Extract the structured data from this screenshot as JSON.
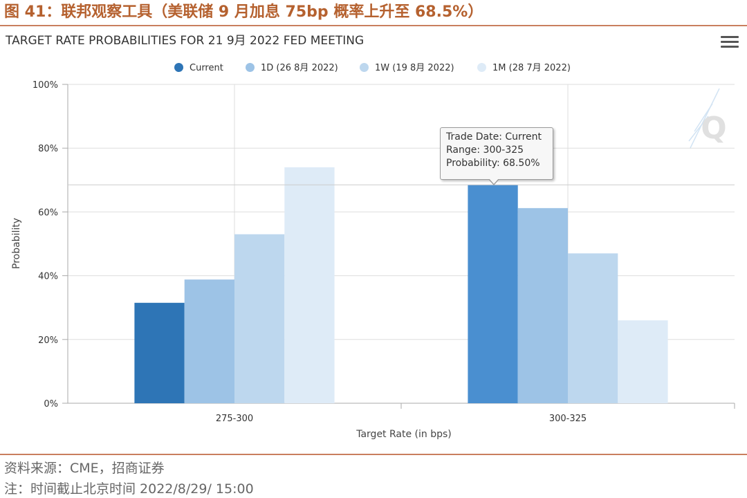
{
  "figure": {
    "title": "图 41：联邦观察工具（美联储 9 月加息 75bp 概率上升至 68.5%）",
    "source": "资料来源：CME，招商证券",
    "note": "注：时间截止北京时间 2022/8/29/ 15:00"
  },
  "menu": {
    "icon": "hamburger-menu-icon"
  },
  "watermark": {
    "icon": "quikstrike-q-logo",
    "letter": "Q"
  },
  "colors": {
    "rule": "#c97e5e",
    "title": "#b5612f",
    "current": "#2e75b6",
    "current_highlight": "#4a8fd0",
    "d1": "#9dc3e6",
    "w1": "#bdd7ee",
    "m1": "#deebf7",
    "grid": "#dddddd",
    "axis": "#aaaaaa"
  },
  "tooltip": {
    "line1": "Trade Date: Current",
    "line2": "Range: 300-325",
    "line3": "Probability: 68.50%"
  },
  "chart_data": {
    "type": "bar",
    "title": "TARGET RATE PROBABILITIES FOR 21 9月 2022 FED MEETING",
    "xlabel": "Target Rate (in bps)",
    "ylabel": "Probability",
    "categories": [
      "275-300",
      "300-325"
    ],
    "ylim": [
      0,
      100
    ],
    "yticks": [
      "0%",
      "20%",
      "40%",
      "60%",
      "80%",
      "100%"
    ],
    "yunit": "%",
    "grid": true,
    "legend_position": "top",
    "series": [
      {
        "name": "Current",
        "color": "#2e75b6",
        "values": [
          31.5,
          68.5
        ]
      },
      {
        "name": "1D (26 8月 2022)",
        "color": "#9dc3e6",
        "values": [
          38.8,
          61.2
        ]
      },
      {
        "name": "1W (19 8月 2022)",
        "color": "#bdd7ee",
        "values": [
          53.0,
          47.0
        ]
      },
      {
        "name": "1M (28 7月 2022)",
        "color": "#deebf7",
        "values": [
          74.0,
          26.0
        ]
      }
    ],
    "highlight": {
      "series": 0,
      "category": 1
    },
    "reference_line": 68.5
  }
}
